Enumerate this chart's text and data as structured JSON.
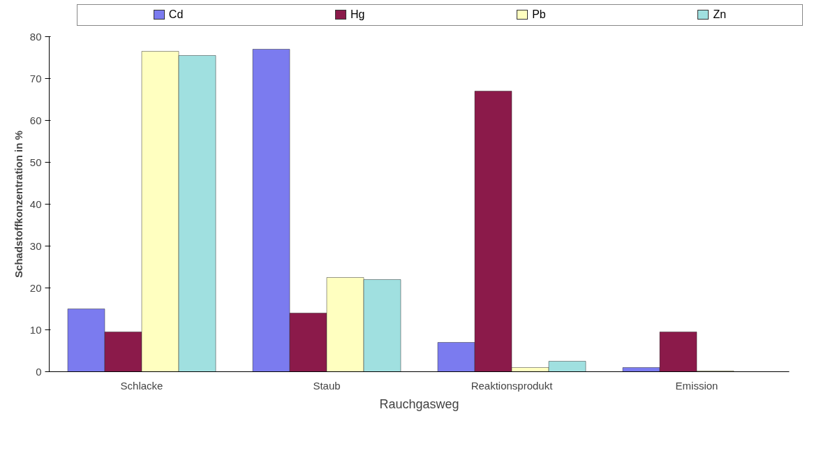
{
  "chart_data": {
    "type": "bar",
    "xlabel": "Rauchgasweg",
    "ylabel": "Schadstoffkonzentration in %",
    "categories": [
      "Schlacke",
      "Staub",
      "Reaktionsprodukt",
      "Emission"
    ],
    "series": [
      {
        "name": "Cd",
        "color": "#7b7bef",
        "values": [
          15,
          77,
          7,
          1
        ]
      },
      {
        "name": "Hg",
        "color": "#8b1a4a",
        "values": [
          9.5,
          14,
          67,
          9.5
        ]
      },
      {
        "name": "Pb",
        "color": "#ffffc0",
        "values": [
          76.5,
          22.5,
          1,
          0.2
        ]
      },
      {
        "name": "Zn",
        "color": "#a0e0e0",
        "values": [
          75.5,
          22,
          2.5,
          null
        ]
      }
    ],
    "ylim": [
      0,
      80
    ],
    "yticks": [
      0,
      10,
      20,
      30,
      40,
      50,
      60,
      70,
      80
    ],
    "grid": false,
    "legend": "top"
  }
}
